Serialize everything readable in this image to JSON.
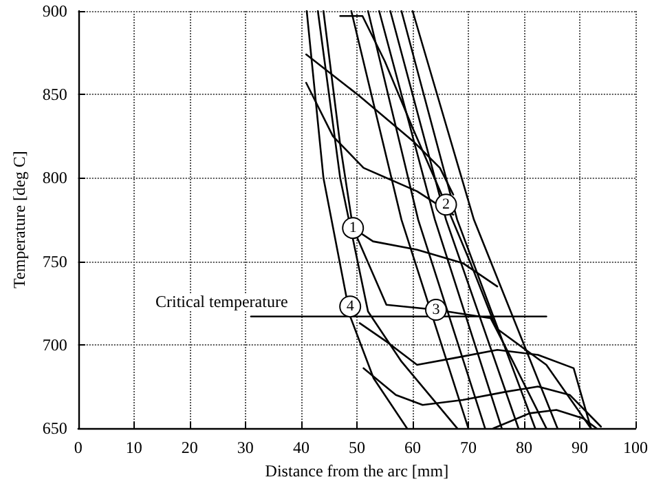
{
  "chart_data": {
    "type": "line",
    "xlabel": "Distance from the arc [mm]",
    "ylabel": "Temperature [deg C]",
    "xlim": [
      0,
      100
    ],
    "xticks": [
      0,
      10,
      20,
      30,
      40,
      50,
      60,
      70,
      80,
      90,
      100
    ],
    "ylim": [
      650,
      900
    ],
    "yticks": [
      650,
      700,
      750,
      800,
      850,
      900
    ],
    "grid": true,
    "line_style": "solid",
    "marker": "none",
    "series": [
      {
        "color": "#000000",
        "x": [
          41,
          44,
          48.8,
          53,
          59
        ],
        "values": [
          900,
          800,
          717,
          680,
          650
        ]
      },
      {
        "color": "#000000",
        "x": [
          43,
          47,
          52,
          58,
          68
        ],
        "values": [
          900,
          800,
          720,
          690,
          650
        ]
      },
      {
        "color": "#000000",
        "x": [
          44,
          47,
          49.3,
          55.3,
          64.2,
          74,
          78,
          84
        ],
        "values": [
          900,
          820,
          770,
          724,
          721,
          716,
          690,
          650
        ]
      },
      {
        "color": "#000000",
        "x": [
          47,
          51,
          55,
          60,
          66,
          70.4,
          75,
          84,
          92
        ],
        "values": [
          897,
          897,
          870,
          830,
          784,
          749,
          710,
          688,
          650
        ]
      },
      {
        "color": "#000000",
        "x": [
          49,
          58,
          70
        ],
        "values": [
          900,
          775,
          650
        ]
      },
      {
        "color": "#000000",
        "x": [
          52,
          61,
          73
        ],
        "values": [
          900,
          775,
          650
        ]
      },
      {
        "color": "#000000",
        "x": [
          54,
          64,
          76
        ],
        "values": [
          900,
          775,
          650
        ]
      },
      {
        "color": "#000000",
        "x": [
          56,
          66,
          79
        ],
        "values": [
          900,
          775,
          650
        ]
      },
      {
        "color": "#000000",
        "x": [
          58,
          68,
          82
        ],
        "values": [
          900,
          775,
          650
        ]
      },
      {
        "color": "#000000",
        "x": [
          60,
          71,
          86
        ],
        "values": [
          900,
          775,
          650
        ]
      },
      {
        "color": "#000000",
        "x": [
          40.9,
          50.5,
          60.1,
          64.9,
          67.3
        ],
        "values": [
          874,
          849,
          822,
          806,
          790
        ]
      },
      {
        "color": "#000000",
        "x": [
          40.9,
          45.7,
          51.2,
          60.8,
          67.3
        ],
        "values": [
          857,
          825,
          806,
          792,
          778
        ]
      },
      {
        "color": "#000000",
        "x": [
          49.3,
          52.9,
          60.8,
          69,
          75.2
        ],
        "values": [
          770,
          762,
          757,
          749,
          735
        ]
      },
      {
        "color": "#000000",
        "x": [
          50.5,
          55.3,
          60.8,
          67.3,
          75.2,
          82.5,
          88.9,
          92
        ],
        "values": [
          713,
          702,
          688,
          692,
          697,
          694,
          686,
          650
        ]
      },
      {
        "color": "#000000",
        "x": [
          51.2,
          57,
          61.8,
          69,
          76.9,
          82.5,
          88.2,
          93.8
        ],
        "values": [
          686,
          670,
          664,
          667,
          672,
          675,
          670,
          651
        ]
      },
      {
        "color": "#000000",
        "x": [
          74.5,
          81,
          85.8,
          90.6,
          93
        ],
        "values": [
          650,
          659,
          661,
          656,
          650
        ]
      },
      {
        "color": "#000000",
        "x": [
          31,
          84
        ],
        "values": [
          717,
          717
        ]
      }
    ],
    "annotations": [
      "Critical temperature",
      {
        "text": "1",
        "x": 49.3,
        "y": 770
      },
      {
        "text": "2",
        "x": 66,
        "y": 784
      },
      {
        "text": "3",
        "x": 64.2,
        "y": 721
      },
      {
        "text": "4",
        "x": 48.8,
        "y": 723
      }
    ]
  }
}
